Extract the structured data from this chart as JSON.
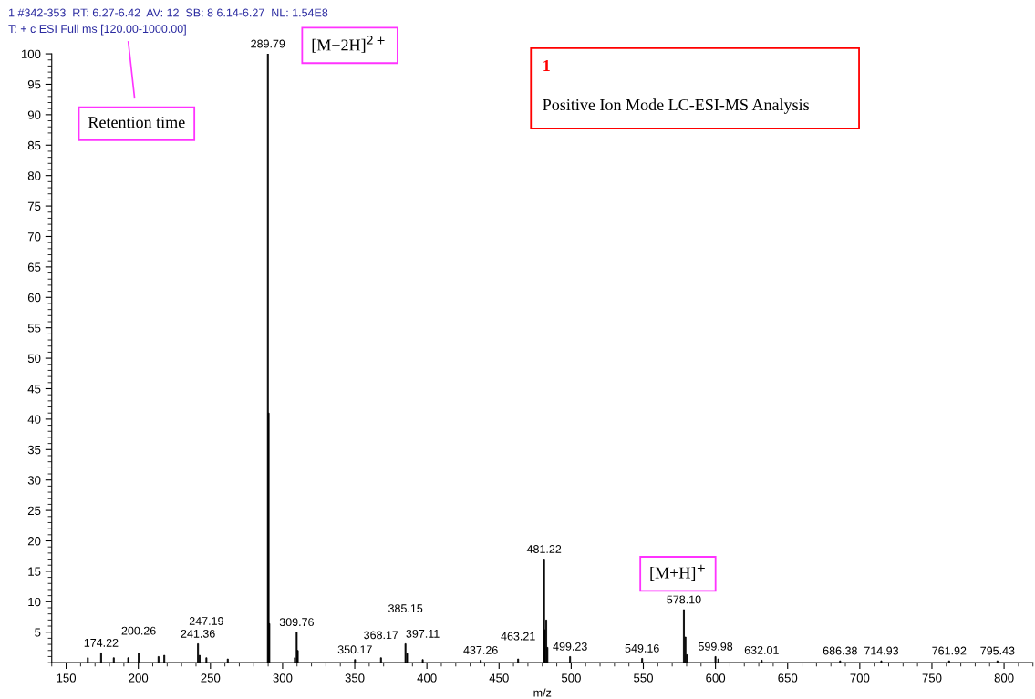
{
  "chart_data": {
    "type": "bar",
    "title": "1 #342-353  RT: 6.27-6.42  AV: 12  SB: 8 6.14-6.27  NL: 1.54E8",
    "subtitle": "T: + c ESI Full ms [120.00-1000.00]",
    "xlabel": "m/z",
    "annotations": [
      "Retention time",
      "[M+2H]$^{2+}$",
      "[M+H]$^{+}$",
      "1",
      "Positive Ion Mode LC-ESI-MS Analysis",
      {
        "text": "174.22",
        "x": 174.22,
        "y": 1.6
      },
      {
        "text": "200.26",
        "x": 200.26,
        "y": 1.5
      },
      {
        "text": "241.36",
        "x": 241.36,
        "y": 3.1
      },
      {
        "text": "247.19",
        "x": 247.19,
        "y": 0.8
      },
      {
        "text": "289.79",
        "x": 289.79,
        "y": 100
      },
      {
        "text": "309.76",
        "x": 309.76,
        "y": 5.0
      },
      {
        "text": "350.17",
        "x": 350.17,
        "y": 0.5
      },
      {
        "text": "368.17",
        "x": 368.17,
        "y": 0.8
      },
      {
        "text": "385.15",
        "x": 385.15,
        "y": 3.1
      },
      {
        "text": "397.11",
        "x": 397.11,
        "y": 0.5
      },
      {
        "text": "437.26",
        "x": 437.26,
        "y": 0.4
      },
      {
        "text": "463.21",
        "x": 463.21,
        "y": 0.6
      },
      {
        "text": "481.22",
        "x": 481.22,
        "y": 17
      },
      {
        "text": "499.23",
        "x": 499.23,
        "y": 1.0
      },
      {
        "text": "549.16",
        "x": 549.16,
        "y": 0.7
      },
      {
        "text": "578.10",
        "x": 578.1,
        "y": 8.7
      },
      {
        "text": "599.98",
        "x": 599.98,
        "y": 1.0
      },
      {
        "text": "632.01",
        "x": 632.01,
        "y": 0.4
      },
      {
        "text": "686.38",
        "x": 686.38,
        "y": 0.3
      },
      {
        "text": "714.93",
        "x": 714.93,
        "y": 0.3
      },
      {
        "text": "761.92",
        "x": 761.92,
        "y": 0.3
      },
      {
        "text": "795.43",
        "x": 795.43,
        "y": 0.3
      }
    ],
    "x": [
      165,
      174.22,
      183,
      193,
      200.26,
      214,
      218,
      241.36,
      242.5,
      247.19,
      262,
      289.79,
      290.3,
      290.8,
      308.5,
      309.76,
      310.5,
      350.17,
      368.17,
      385.15,
      386.3,
      397.11,
      437.26,
      463.21,
      481.22,
      481.7,
      482.7,
      483.5,
      499.23,
      549.16,
      578.1,
      579.2,
      580.2,
      599.98,
      602,
      632.01,
      686.38,
      714.93,
      761.92,
      795.43
    ],
    "values": [
      0.8,
      1.6,
      0.8,
      0.8,
      1.5,
      1.0,
      1.2,
      3.1,
      1.2,
      0.8,
      0.6,
      100,
      41,
      6.4,
      0.8,
      5.0,
      2.0,
      0.5,
      0.8,
      3.1,
      1.5,
      0.5,
      0.4,
      0.6,
      17,
      5.4,
      7.0,
      2.5,
      1.0,
      0.7,
      8.7,
      4.2,
      1.3,
      1.0,
      0.6,
      0.4,
      0.3,
      0.3,
      0.3,
      0.3
    ],
    "color": "#000000",
    "xlim": [
      140,
      820
    ],
    "xticks": [
      150,
      200,
      250,
      300,
      350,
      400,
      450,
      500,
      550,
      600,
      650,
      700,
      750,
      800
    ],
    "ylim": [
      0,
      100
    ],
    "yticks": [
      5,
      10,
      15,
      20,
      25,
      30,
      35,
      40,
      45,
      50,
      55,
      60,
      65,
      70,
      75,
      80,
      85,
      90,
      95,
      100
    ],
    "grid": false,
    "legend": false
  }
}
